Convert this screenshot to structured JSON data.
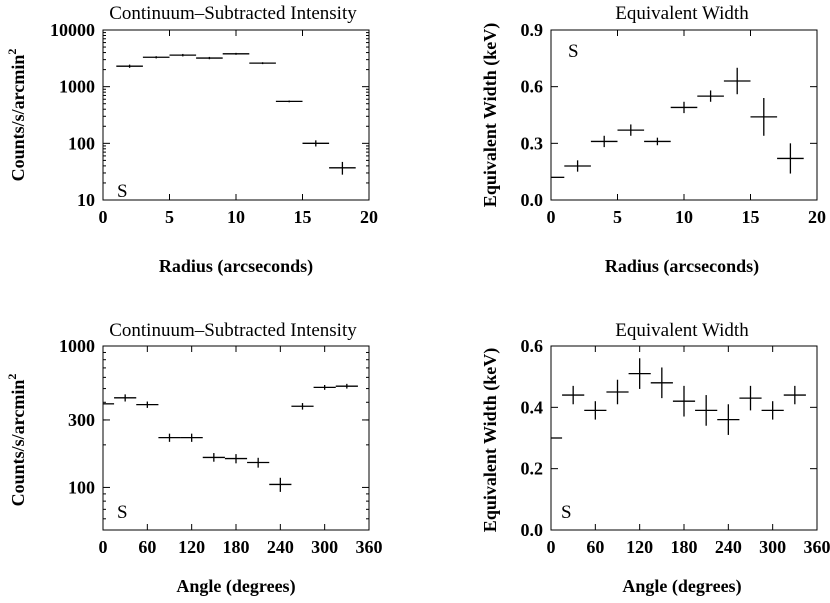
{
  "chart_data": [
    {
      "type": "scatter",
      "title": "Continuum–Subtracted Intensity",
      "xlabel": "Radius (arcseconds)",
      "ylabel": "Counts/s/arcmin",
      "ylabel_superscript": "2",
      "xlim": [
        0,
        20
      ],
      "ylim": [
        10,
        10000
      ],
      "yscale": "log",
      "xticks": [
        0,
        5,
        10,
        15,
        20
      ],
      "yticks": [
        10,
        100,
        1000,
        10000
      ],
      "xtick_labels": [
        "0",
        "5",
        "10",
        "15",
        "20"
      ],
      "ytick_labels": [
        "10",
        "100",
        "1000",
        "10000"
      ],
      "annotation": "S",
      "points": [
        {
          "x": 2,
          "y": 2300,
          "xerr": 1,
          "yerr": [
            2150,
            2450
          ]
        },
        {
          "x": 4,
          "y": 3300,
          "xerr": 1,
          "yerr": [
            3150,
            3450
          ]
        },
        {
          "x": 6,
          "y": 3600,
          "xerr": 1,
          "yerr": [
            3420,
            3780
          ]
        },
        {
          "x": 8,
          "y": 3200,
          "xerr": 1,
          "yerr": [
            3050,
            3350
          ]
        },
        {
          "x": 10,
          "y": 3800,
          "xerr": 1,
          "yerr": [
            3650,
            3950
          ]
        },
        {
          "x": 12,
          "y": 2600,
          "xerr": 1,
          "yerr": [
            2500,
            2700
          ]
        },
        {
          "x": 14,
          "y": 550,
          "xerr": 1,
          "yerr": [
            530,
            570
          ]
        },
        {
          "x": 16,
          "y": 100,
          "xerr": 1,
          "yerr": [
            88,
            113
          ]
        },
        {
          "x": 18,
          "y": 37,
          "xerr": 1,
          "yerr": [
            28,
            47
          ]
        }
      ]
    },
    {
      "type": "scatter",
      "title": "Equivalent Width",
      "xlabel": "Radius (arcseconds)",
      "ylabel": "Equivalent Width (keV)",
      "xlim": [
        0,
        20
      ],
      "ylim": [
        0,
        0.9
      ],
      "yscale": "linear",
      "xticks": [
        0,
        5,
        10,
        15,
        20
      ],
      "yticks": [
        0,
        0.3,
        0.6,
        0.9
      ],
      "xtick_labels": [
        "0",
        "5",
        "10",
        "15",
        "20"
      ],
      "ytick_labels": [
        "0.0",
        "0.3",
        "0.6",
        "0.9"
      ],
      "annotation": "S",
      "points": [
        {
          "x": 0,
          "y": 0.12,
          "xerr": 1,
          "yerr": [
            0.12,
            0.12
          ]
        },
        {
          "x": 2,
          "y": 0.18,
          "xerr": 1,
          "yerr": [
            0.15,
            0.21
          ]
        },
        {
          "x": 4,
          "y": 0.31,
          "xerr": 1,
          "yerr": [
            0.28,
            0.34
          ]
        },
        {
          "x": 6,
          "y": 0.37,
          "xerr": 1,
          "yerr": [
            0.34,
            0.4
          ]
        },
        {
          "x": 8,
          "y": 0.31,
          "xerr": 1,
          "yerr": [
            0.29,
            0.33
          ]
        },
        {
          "x": 10,
          "y": 0.49,
          "xerr": 1,
          "yerr": [
            0.46,
            0.52
          ]
        },
        {
          "x": 12,
          "y": 0.55,
          "xerr": 1,
          "yerr": [
            0.52,
            0.58
          ]
        },
        {
          "x": 14,
          "y": 0.63,
          "xerr": 1,
          "yerr": [
            0.56,
            0.7
          ]
        },
        {
          "x": 16,
          "y": 0.44,
          "xerr": 1,
          "yerr": [
            0.34,
            0.54
          ]
        },
        {
          "x": 18,
          "y": 0.22,
          "xerr": 1,
          "yerr": [
            0.14,
            0.3
          ]
        }
      ]
    },
    {
      "type": "scatter",
      "title": "Continuum–Subtracted Intensity",
      "xlabel": "Angle (degrees)",
      "ylabel": "Counts/s/arcmin",
      "ylabel_superscript": "2",
      "xlim": [
        0,
        360
      ],
      "ylim": [
        50,
        1000
      ],
      "yscale": "log",
      "xticks": [
        0,
        60,
        120,
        180,
        240,
        300,
        360
      ],
      "yticks": [
        100,
        300,
        1000
      ],
      "xtick_labels": [
        "0",
        "60",
        "120",
        "180",
        "240",
        "300",
        "360"
      ],
      "ytick_labels": [
        "100",
        "300",
        "1000"
      ],
      "annotation": "S",
      "points": [
        {
          "x": 0,
          "y": 390,
          "xerr": 15,
          "yerr": [
            390,
            390
          ]
        },
        {
          "x": 30,
          "y": 430,
          "xerr": 15,
          "yerr": [
            405,
            455
          ]
        },
        {
          "x": 60,
          "y": 385,
          "xerr": 15,
          "yerr": [
            365,
            405
          ]
        },
        {
          "x": 90,
          "y": 225,
          "xerr": 15,
          "yerr": [
            210,
            240
          ]
        },
        {
          "x": 120,
          "y": 225,
          "xerr": 15,
          "yerr": [
            210,
            240
          ]
        },
        {
          "x": 150,
          "y": 163,
          "xerr": 15,
          "yerr": [
            152,
            175
          ]
        },
        {
          "x": 180,
          "y": 160,
          "xerr": 15,
          "yerr": [
            148,
            172
          ]
        },
        {
          "x": 210,
          "y": 150,
          "xerr": 15,
          "yerr": [
            138,
            162
          ]
        },
        {
          "x": 240,
          "y": 105,
          "xerr": 15,
          "yerr": [
            93,
            117
          ]
        },
        {
          "x": 270,
          "y": 375,
          "xerr": 15,
          "yerr": [
            355,
            395
          ]
        },
        {
          "x": 300,
          "y": 510,
          "xerr": 15,
          "yerr": [
            490,
            530
          ]
        },
        {
          "x": 330,
          "y": 520,
          "xerr": 15,
          "yerr": [
            500,
            540
          ]
        }
      ]
    },
    {
      "type": "scatter",
      "title": "Equivalent Width",
      "xlabel": "Angle (degrees)",
      "ylabel": "Equivalent Width (keV)",
      "xlim": [
        0,
        360
      ],
      "ylim": [
        0,
        0.6
      ],
      "yscale": "linear",
      "xticks": [
        0,
        60,
        120,
        180,
        240,
        300,
        360
      ],
      "yticks": [
        0,
        0.2,
        0.4,
        0.6
      ],
      "xtick_labels": [
        "0",
        "60",
        "120",
        "180",
        "240",
        "300",
        "360"
      ],
      "ytick_labels": [
        "0.0",
        "0.2",
        "0.4",
        "0.6"
      ],
      "annotation": "S",
      "points": [
        {
          "x": 0,
          "y": 0.3,
          "xerr": 15,
          "yerr": [
            0.3,
            0.3
          ]
        },
        {
          "x": 30,
          "y": 0.44,
          "xerr": 15,
          "yerr": [
            0.41,
            0.47
          ]
        },
        {
          "x": 60,
          "y": 0.39,
          "xerr": 15,
          "yerr": [
            0.36,
            0.42
          ]
        },
        {
          "x": 90,
          "y": 0.45,
          "xerr": 15,
          "yerr": [
            0.41,
            0.49
          ]
        },
        {
          "x": 120,
          "y": 0.51,
          "xerr": 15,
          "yerr": [
            0.46,
            0.56
          ]
        },
        {
          "x": 150,
          "y": 0.48,
          "xerr": 15,
          "yerr": [
            0.43,
            0.53
          ]
        },
        {
          "x": 180,
          "y": 0.42,
          "xerr": 15,
          "yerr": [
            0.37,
            0.47
          ]
        },
        {
          "x": 210,
          "y": 0.39,
          "xerr": 15,
          "yerr": [
            0.34,
            0.44
          ]
        },
        {
          "x": 240,
          "y": 0.36,
          "xerr": 15,
          "yerr": [
            0.31,
            0.41
          ]
        },
        {
          "x": 270,
          "y": 0.43,
          "xerr": 15,
          "yerr": [
            0.39,
            0.47
          ]
        },
        {
          "x": 300,
          "y": 0.39,
          "xerr": 15,
          "yerr": [
            0.36,
            0.42
          ]
        },
        {
          "x": 330,
          "y": 0.44,
          "xerr": 15,
          "yerr": [
            0.41,
            0.47
          ]
        }
      ]
    }
  ]
}
